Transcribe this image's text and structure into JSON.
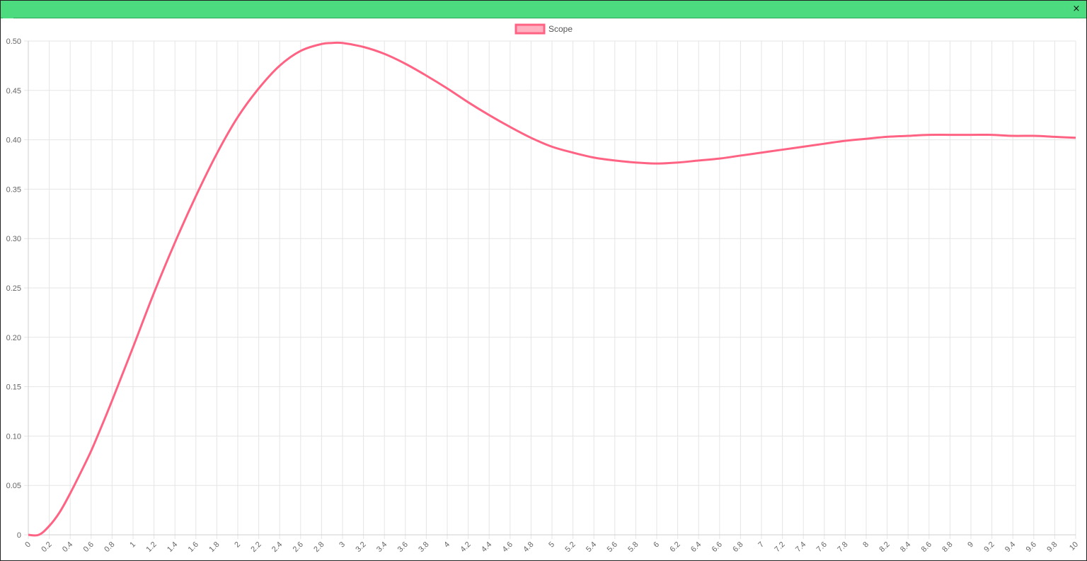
{
  "window": {
    "titlebar_color": "#4cdb7e",
    "close_label": "×"
  },
  "chart_data": {
    "type": "line",
    "title": "",
    "xlabel": "",
    "ylabel": "",
    "xlim": [
      0,
      10
    ],
    "ylim": [
      0,
      0.5
    ],
    "grid": true,
    "legend_position": "top-center",
    "x_ticks": [
      "0",
      "0.2",
      "0.4",
      "0.6",
      "0.8",
      "1",
      "1.2",
      "1.4",
      "1.6",
      "1.8",
      "2",
      "2.2",
      "2.4",
      "2.6",
      "2.8",
      "3",
      "3.2",
      "3.4",
      "3.6",
      "3.8",
      "4",
      "4.2",
      "4.4",
      "4.6",
      "4.8",
      "5",
      "5.2",
      "5.4",
      "5.6",
      "5.8",
      "6",
      "6.2",
      "6.4",
      "6.6",
      "6.8",
      "7",
      "7.2",
      "7.4",
      "7.6",
      "7.8",
      "8",
      "8.2",
      "8.4",
      "8.6",
      "8.8",
      "9",
      "9.2",
      "9.4",
      "9.6",
      "9.8",
      "10"
    ],
    "y_ticks": [
      "0",
      "0.05",
      "0.10",
      "0.15",
      "0.20",
      "0.25",
      "0.30",
      "0.35",
      "0.40",
      "0.45",
      "0.50"
    ],
    "series": [
      {
        "name": "Scope",
        "color": "#ff6384",
        "fill": "#ffb1c1",
        "x": [
          0,
          0.1,
          0.2,
          0.3,
          0.4,
          0.5,
          0.6,
          0.7,
          0.8,
          0.9,
          1,
          1.2,
          1.4,
          1.6,
          1.8,
          2,
          2.2,
          2.4,
          2.6,
          2.8,
          2.9,
          3,
          3.2,
          3.4,
          3.6,
          3.8,
          4,
          4.2,
          4.4,
          4.6,
          4.8,
          5,
          5.2,
          5.4,
          5.6,
          5.8,
          6,
          6.2,
          6.4,
          6.6,
          6.8,
          7,
          7.2,
          7.4,
          7.6,
          7.8,
          8,
          8.2,
          8.4,
          8.6,
          8.8,
          9,
          9.2,
          9.4,
          9.6,
          9.8,
          10
        ],
        "y": [
          0,
          0,
          0.009,
          0.023,
          0.042,
          0.063,
          0.085,
          0.11,
          0.136,
          0.163,
          0.19,
          0.245,
          0.296,
          0.343,
          0.386,
          0.423,
          0.452,
          0.475,
          0.49,
          0.497,
          0.498,
          0.498,
          0.494,
          0.487,
          0.477,
          0.465,
          0.452,
          0.438,
          0.425,
          0.413,
          0.402,
          0.393,
          0.387,
          0.382,
          0.379,
          0.377,
          0.376,
          0.377,
          0.379,
          0.381,
          0.384,
          0.387,
          0.39,
          0.393,
          0.396,
          0.399,
          0.401,
          0.403,
          0.404,
          0.405,
          0.405,
          0.405,
          0.405,
          0.404,
          0.404,
          0.403,
          0.402
        ]
      }
    ]
  }
}
